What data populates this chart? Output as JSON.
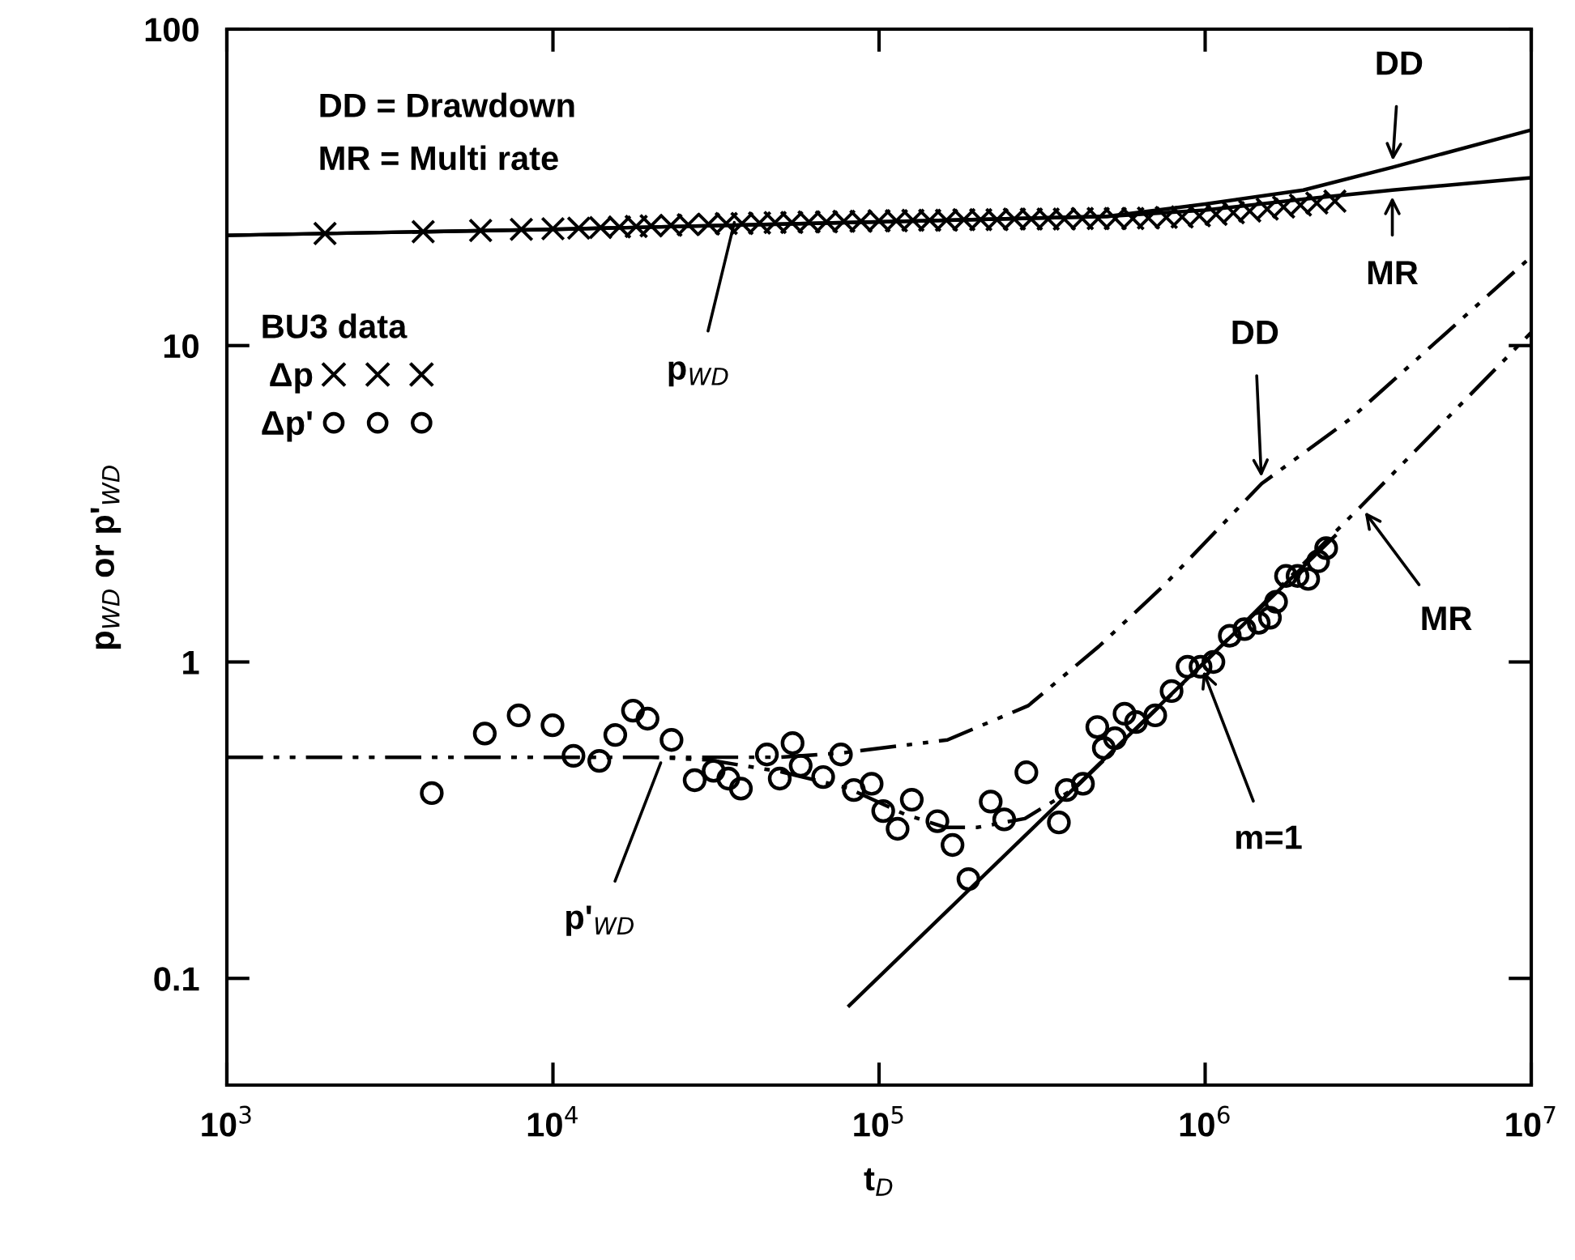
{
  "chart_data": {
    "type": "line",
    "xlabel": "t$_{D}$",
    "ylabel": "p$_{WD}$ or p'$_{WD}$",
    "log": "xy",
    "xlim": [
      1000,
      10000000
    ],
    "ylim": [
      0.046,
      100
    ],
    "xticks": [
      {
        "value": 1000,
        "label": "10$^{3}$"
      },
      {
        "value": 10000,
        "label": "10$^{4}$"
      },
      {
        "value": 100000,
        "label": "10$^{5}$"
      },
      {
        "value": 1000000,
        "label": "10$^{6}$"
      },
      {
        "value": 10000000,
        "label": "10$^{7}$"
      }
    ],
    "yticks": [
      0.1,
      1,
      10,
      100
    ],
    "grid": false,
    "legend": "left",
    "legend_title": "BU3 data",
    "series": [
      {
        "name": "Δp",
        "type": "scatter",
        "marker": "cross",
        "color": "#000000",
        "x": [
          2000,
          4000,
          6000,
          8000,
          10000,
          12000,
          14000,
          16000,
          18000,
          20000,
          23000,
          26000,
          30000,
          34000,
          38000,
          43000,
          48000,
          54000,
          61000,
          69000,
          78000,
          88000,
          100000,
          113000,
          127000,
          143000,
          161000,
          182000,
          205000,
          230000,
          260000,
          293000,
          330000,
          370000,
          420000,
          470000,
          530000,
          600000,
          670000,
          760000,
          850000,
          960000,
          1080000,
          1220000,
          1370000,
          1550000,
          1740000,
          1960000,
          2200000,
          2500000
        ],
        "values": [
          22.6,
          22.9,
          23.1,
          23.3,
          23.4,
          23.5,
          23.6,
          23.7,
          23.8,
          23.9,
          24.0,
          24.1,
          24.2,
          24.3,
          24.3,
          24.4,
          24.5,
          24.5,
          24.6,
          24.6,
          24.7,
          24.7,
          24.8,
          24.8,
          24.9,
          24.9,
          24.9,
          25.0,
          25.0,
          25.0,
          25.1,
          25.1,
          25.1,
          25.1,
          25.2,
          25.2,
          25.2,
          25.2,
          25.3,
          25.4,
          25.5,
          25.7,
          26.0,
          26.3,
          26.6,
          27.0,
          27.4,
          27.8,
          28.2,
          28.6
        ]
      },
      {
        "name": "Δp'",
        "type": "scatter",
        "marker": "circle",
        "color": "#000000",
        "x": [
          4250,
          6180,
          7850,
          9970,
          11560,
          13870,
          15530,
          17600,
          19500,
          23100,
          27200,
          31100,
          34500,
          37700,
          45300,
          49600,
          54300,
          57500,
          67400,
          76400,
          83700,
          94900,
          103000,
          114000,
          126000,
          151000,
          168000,
          188000,
          220000,
          242000,
          283000,
          356000,
          376000,
          422000,
          467000,
          489000,
          529000,
          566000,
          614000,
          703000,
          789000,
          883000,
          968000,
          1060000,
          1190000,
          1320000,
          1460000,
          1580000,
          1650000,
          1770000,
          1920000,
          2070000,
          2220000,
          2350000
        ],
        "values": [
          0.385,
          0.594,
          0.678,
          0.631,
          0.505,
          0.487,
          0.588,
          0.702,
          0.662,
          0.567,
          0.423,
          0.453,
          0.428,
          0.398,
          0.51,
          0.428,
          0.554,
          0.47,
          0.433,
          0.51,
          0.394,
          0.412,
          0.338,
          0.297,
          0.367,
          0.314,
          0.264,
          0.206,
          0.362,
          0.318,
          0.448,
          0.311,
          0.394,
          0.412,
          0.623,
          0.535,
          0.574,
          0.686,
          0.646,
          0.678,
          0.809,
          0.966,
          0.966,
          1.0,
          1.21,
          1.27,
          1.33,
          1.38,
          1.55,
          1.87,
          1.87,
          1.83,
          2.08,
          2.29
        ]
      },
      {
        "line_style": "solid",
        "color": "#000000",
        "x": [
          1000,
          10000,
          100000,
          500000,
          1000000,
          2000000,
          3750000,
          10000000
        ],
        "values": [
          22.3,
          23.3,
          24.6,
          25.6,
          28.0,
          31.0,
          36.6,
          48.0
        ]
      },
      {
        "line_style": "solid",
        "color": "#000000",
        "x": [
          1000,
          10000,
          100000,
          500000,
          1000000,
          2000000,
          3750000,
          10000000
        ],
        "values": [
          22.3,
          23.3,
          24.6,
          25.6,
          26.8,
          29.0,
          31.0,
          33.9
        ]
      },
      {
        "line_style": "dashed",
        "color": "#000000",
        "x": [
          1000,
          50000,
          77000,
          162000,
          287000,
          472000,
          745000,
          1490000,
          2790000,
          10000000
        ],
        "values": [
          0.5,
          0.5,
          0.516,
          0.567,
          0.728,
          1.12,
          1.74,
          3.66,
          5.87,
          19.1
        ]
      },
      {
        "line_style": "dashed",
        "color": "#000000",
        "x": [
          1000,
          20000,
          30000,
          50000,
          80000,
          120000,
          160000,
          200000,
          280000,
          400000,
          1000000,
          3000000,
          10000000
        ],
        "values": [
          0.5,
          0.5,
          0.49,
          0.45,
          0.4,
          0.33,
          0.3,
          0.3,
          0.32,
          0.4,
          1.0,
          3.1,
          11.0
        ]
      },
      {
        "line_style": "solid",
        "color": "#000000",
        "x": [
          81000,
          2500000
        ],
        "values": [
          0.082,
          2.5
        ]
      }
    ],
    "annotations": [
      "DD = Drawdown",
      "MR = Multi rate",
      {
        "text": "DD",
        "x": 3750000,
        "y": 36.6
      },
      {
        "text": "MR",
        "x": 3750000,
        "y": 31.0
      },
      {
        "text": "p$_{WD}$",
        "x": 36000,
        "y": 24.5
      },
      {
        "text": "DD",
        "x": 1490000,
        "y": 3.66
      },
      {
        "text": "MR",
        "x": 3000000,
        "y": 3.1
      },
      {
        "text": "m=1",
        "x": 970000,
        "y": 0.98
      },
      {
        "text": "p'$_{WD}$",
        "x": 21400,
        "y": 0.48
      }
    ]
  }
}
